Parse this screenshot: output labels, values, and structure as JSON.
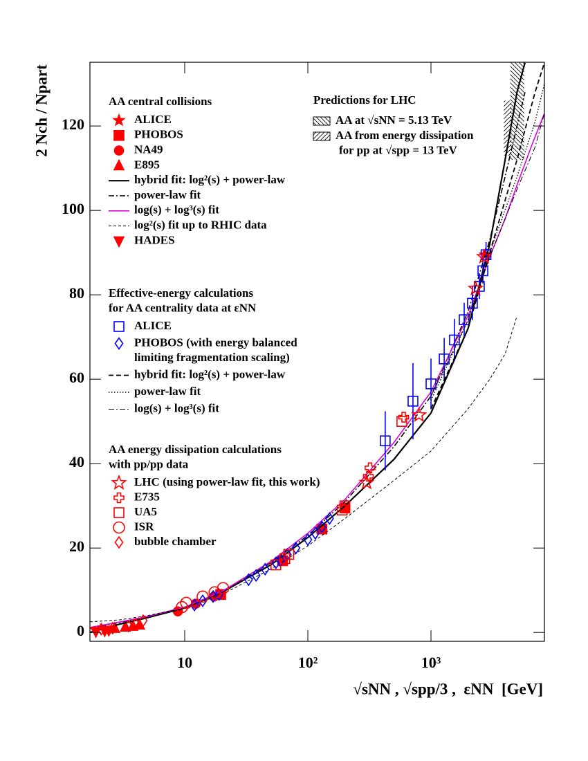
{
  "chart_data": {
    "type": "scatter",
    "x_label": "√sNN , √spp/3 ,  εNN  [GeV]",
    "y_label": "2 Nch / Npart",
    "x_log": true,
    "xlim": [
      1.7,
      8340
    ],
    "ylim": [
      -2.1,
      135.1
    ],
    "xticks": [
      10,
      {
        "value": 100,
        "label": "10²"
      },
      {
        "value": 1000,
        "label": "10³"
      }
    ],
    "yticks": [
      0,
      20,
      40,
      60,
      80,
      100,
      120
    ],
    "groups": [
      {
        "title": [
          "AA central collisions"
        ],
        "series": [
          {
            "name": "ALICE",
            "kind": "scatter",
            "marker": "star",
            "filled": true,
            "color": "#ff0000",
            "x": [
              2760
            ],
            "values": [
              89.5
            ]
          },
          {
            "name": "PHOBOS",
            "kind": "scatter",
            "marker": "square",
            "filled": true,
            "color": "#ff0000",
            "x": [
              19.6,
              62.4,
              130,
              200
            ],
            "values": [
              9,
              17,
              24.5,
              29.5
            ]
          },
          {
            "name": "NA49",
            "kind": "scatter",
            "marker": "circle",
            "filled": true,
            "color": "#ff0000",
            "x": [
              8.8,
              12.3,
              17.3
            ],
            "values": [
              5,
              6.8,
              8.5
            ]
          },
          {
            "name": "E895",
            "kind": "scatter",
            "marker": "triangle",
            "filled": true,
            "color": "#ff0000",
            "x": [
              2.7,
              3.3,
              3.8,
              4.3
            ],
            "values": [
              1,
              1.3,
              1.5,
              1.8
            ]
          },
          {
            "name": "hybrid fit: log²(s) + power-law",
            "kind": "line",
            "dash": "solid",
            "width": 2.2,
            "color": "#000000",
            "x": [
              1.7,
              3,
              5,
              10,
              20,
              50,
              100,
              200,
              500,
              1000,
              2000,
              3000,
              4000,
              5000,
              5800
            ],
            "values": [
              0,
              2,
              3.5,
              5.8,
              9.5,
              16,
              22.5,
              30,
              41,
              52,
              72,
              92,
              112,
              128,
              135
            ]
          },
          {
            "name": "power-law fit",
            "kind": "line",
            "dash": "dashdot",
            "width": 1.6,
            "color": "#000000",
            "x": [
              1.7,
              3,
              5,
              10,
              20,
              50,
              100,
              200,
              500,
              1000,
              2000,
              3000,
              4000,
              5000,
              5800
            ],
            "values": [
              1,
              2.4,
              3.7,
              6,
              9.5,
              16.5,
              23,
              31,
              44,
              56,
              76,
              93,
              108,
              120,
              128
            ]
          },
          {
            "name": "log(s) + log³(s) fit",
            "kind": "line",
            "dash": "solid",
            "width": 1.6,
            "color": "#e000e0",
            "x": [
              1.7,
              3,
              5,
              10,
              20,
              50,
              100,
              200,
              500,
              1000,
              2000,
              3000,
              4000,
              5000,
              6500,
              8340
            ],
            "values": [
              1.2,
              2.5,
              3.8,
              6,
              9.7,
              16.8,
              23.5,
              31.5,
              45,
              57,
              75,
              89,
              98,
              106,
              115,
              123
            ]
          },
          {
            "name": "log²(s) fit up to RHIC data",
            "kind": "line",
            "dash": "thindash",
            "width": 1,
            "color": "#000000",
            "x": [
              1.7,
              3,
              5,
              10,
              20,
              50,
              100,
              200,
              500,
              1000,
              2000,
              3000,
              4000,
              5000
            ],
            "values": [
              2.5,
              3,
              4,
              5.8,
              9,
              15,
              20.5,
              27,
              36,
              43,
              53,
              60,
              66,
              75
            ]
          },
          {
            "name": "HADES",
            "kind": "scatter",
            "marker": "triangledown",
            "filled": true,
            "color": "#ff0000",
            "x": [
              1.9,
              2.24,
              2.42
            ],
            "values": [
              0.2,
              0.4,
              0.5
            ]
          }
        ]
      },
      {
        "title": [
          "Effective-energy calculations",
          "for AA centrality data at εNN"
        ],
        "series": [
          {
            "name": "ALICE",
            "kind": "scatter",
            "marker": "square",
            "filled": false,
            "color": "#0000ff",
            "x": [
              425,
              714,
              1000,
              1280,
              1550,
              1860,
              2170,
              2470,
              2640,
              2800
            ],
            "values": [
              45.4,
              54.8,
              58.9,
              64.8,
              69.3,
              74.1,
              78,
              82,
              85.7,
              89.5
            ],
            "errors": [
              7,
              9,
              6,
              5,
              5,
              4,
              4,
              3,
              3,
              3
            ]
          },
          {
            "name": [
              "PHOBOS (with energy balanced",
              "limiting fragmentation scaling)"
            ],
            "kind": "scatter",
            "marker": "diamond",
            "filled": false,
            "color": "#0000ff",
            "x": [
              12,
              14,
              17,
              19,
              33,
              38,
              45,
              55,
              60,
              68,
              80,
              100,
              115,
              130,
              150
            ],
            "values": [
              6.5,
              7.5,
              8.5,
              9,
              12.5,
              13.5,
              15,
              16.5,
              17,
              18.5,
              20,
              22,
              23.5,
              25,
              27
            ]
          },
          {
            "name": "hybrid fit: log²(s) + power-law",
            "kind": "line",
            "dash": "dashed",
            "width": 1.8,
            "color": "#000000",
            "x": [
              1000,
              2000,
              3000,
              5000,
              7000,
              8340
            ],
            "values": [
              53,
              72,
              90,
              112,
              128,
              135
            ]
          },
          {
            "name": "power-law fit",
            "kind": "line",
            "dash": "dotted",
            "width": 1.4,
            "color": "#000000",
            "x": [
              1000,
              2000,
              3000,
              5000,
              7000,
              8340
            ],
            "values": [
              55,
              74,
              90,
              108,
              121,
              130
            ]
          },
          {
            "name": "log(s) + log³(s) fit",
            "kind": "line",
            "dash": "dashdot",
            "width": 1,
            "color": "#000000",
            "x": [
              1000,
              2000,
              3000,
              5000,
              7000,
              8340
            ],
            "values": [
              56,
              74,
              89,
              105,
              115,
              123
            ]
          }
        ]
      },
      {
        "title": [
          "AA energy dissipation calculations",
          "with pp/pp data"
        ],
        "series": [
          {
            "name": "LHC (using power-law fit, this work)",
            "kind": "scatter",
            "marker": "star",
            "filled": false,
            "color": "#ff0000",
            "x": [
              300,
              800,
              2300,
              2700
            ],
            "values": [
              35.5,
              51.5,
              81.5,
              89
            ]
          },
          {
            "name": "E735",
            "kind": "scatter",
            "marker": "cross",
            "filled": false,
            "color": "#ff0000",
            "x": [
              310,
              320,
              600
            ],
            "values": [
              37,
              39,
              51
            ]
          },
          {
            "name": "UA5",
            "kind": "scatter",
            "marker": "square",
            "filled": false,
            "color": "#ff0000",
            "x": [
              55,
              65,
              70,
              190,
              200,
              580
            ],
            "values": [
              16,
              17.5,
              18.5,
              29,
              30,
              50
            ]
          },
          {
            "name": "ISR",
            "kind": "scatter",
            "marker": "circle",
            "filled": false,
            "color": "#ff0000",
            "x": [
              9.5,
              10.3,
              14,
              17.5,
              20.5
            ],
            "values": [
              6,
              7,
              8.5,
              9.5,
              10.5
            ]
          },
          {
            "name": "bubble chamber",
            "kind": "scatter",
            "marker": "diamond",
            "filled": false,
            "color": "#ff0000",
            "x": [
              2.1,
              2.6,
              3.5,
              4,
              4.6
            ],
            "values": [
              0.8,
              1,
              1.5,
              2,
              2.8
            ]
          }
        ]
      },
      {
        "title": [
          "Predictions for LHC"
        ],
        "series": [
          {
            "name": "AA at √sNN = 5.13 TeV",
            "kind": "band",
            "hatch": "back",
            "color": "#000000",
            "x": [
              4400,
              5700
            ],
            "values": [
              112,
              135
            ]
          },
          {
            "name": [
              "AA from energy dissipation",
              "for pp at √spp = 13 TeV"
            ],
            "kind": "band",
            "hatch": "fwd",
            "color": "#000000",
            "x": [
              3900,
              4500
            ],
            "values": [
              113,
              126
            ]
          }
        ]
      }
    ]
  }
}
